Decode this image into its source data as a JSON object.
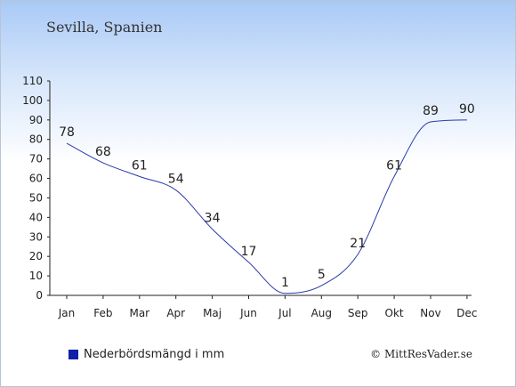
{
  "title": "Sevilla, Spanien",
  "legend": {
    "label": "Nederbördsmängd i mm",
    "color": "#1020a8"
  },
  "copyright": "© MittResVader.se",
  "chart_data": {
    "type": "line",
    "categories": [
      "Jan",
      "Feb",
      "Mar",
      "Apr",
      "Maj",
      "Jun",
      "Jul",
      "Aug",
      "Sep",
      "Okt",
      "Nov",
      "Dec"
    ],
    "values": [
      78,
      68,
      61,
      54,
      34,
      17,
      1,
      5,
      21,
      61,
      89,
      90
    ],
    "y_ticks": [
      0,
      10,
      20,
      30,
      40,
      50,
      60,
      70,
      80,
      90,
      100,
      110
    ],
    "ylim": [
      0,
      110
    ],
    "xlabel": "",
    "ylabel": "",
    "grid": false,
    "line_color": "#2a3aa8",
    "data_labels": true
  }
}
